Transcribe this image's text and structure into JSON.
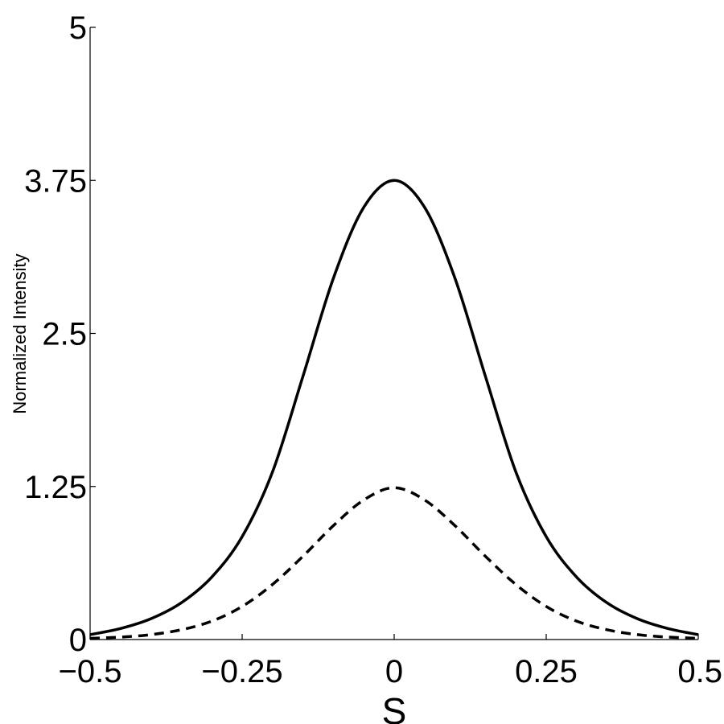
{
  "chart_data": {
    "type": "line",
    "title": "",
    "xlabel": "S",
    "ylabel": "Normalized Intensity",
    "xlim": [
      -0.5,
      0.5
    ],
    "ylim": [
      0,
      5
    ],
    "x_ticks": [
      "−0.5",
      "−0.25",
      "0",
      "0.25",
      "0.5"
    ],
    "y_ticks": [
      "0",
      "1.25",
      "2.5",
      "3.75",
      "5"
    ],
    "grid": false,
    "x": [
      -0.5,
      -0.45,
      -0.4,
      -0.35,
      -0.3,
      -0.25,
      -0.2,
      -0.15,
      -0.1,
      -0.05,
      0,
      0.05,
      0.1,
      0.15,
      0.2,
      0.25,
      0.3,
      0.35,
      0.4,
      0.45,
      0.5
    ],
    "series": [
      {
        "style": "solid",
        "values": [
          0.04,
          0.09,
          0.17,
          0.3,
          0.51,
          0.84,
          1.37,
          2.15,
          2.95,
          3.53,
          3.75,
          3.53,
          2.95,
          2.15,
          1.37,
          0.84,
          0.51,
          0.3,
          0.17,
          0.09,
          0.04
        ]
      },
      {
        "style": "dashed",
        "values": [
          0.01,
          0.02,
          0.04,
          0.08,
          0.15,
          0.27,
          0.45,
          0.68,
          0.93,
          1.14,
          1.24,
          1.14,
          0.93,
          0.68,
          0.45,
          0.27,
          0.15,
          0.08,
          0.04,
          0.02,
          0.01
        ]
      }
    ]
  }
}
